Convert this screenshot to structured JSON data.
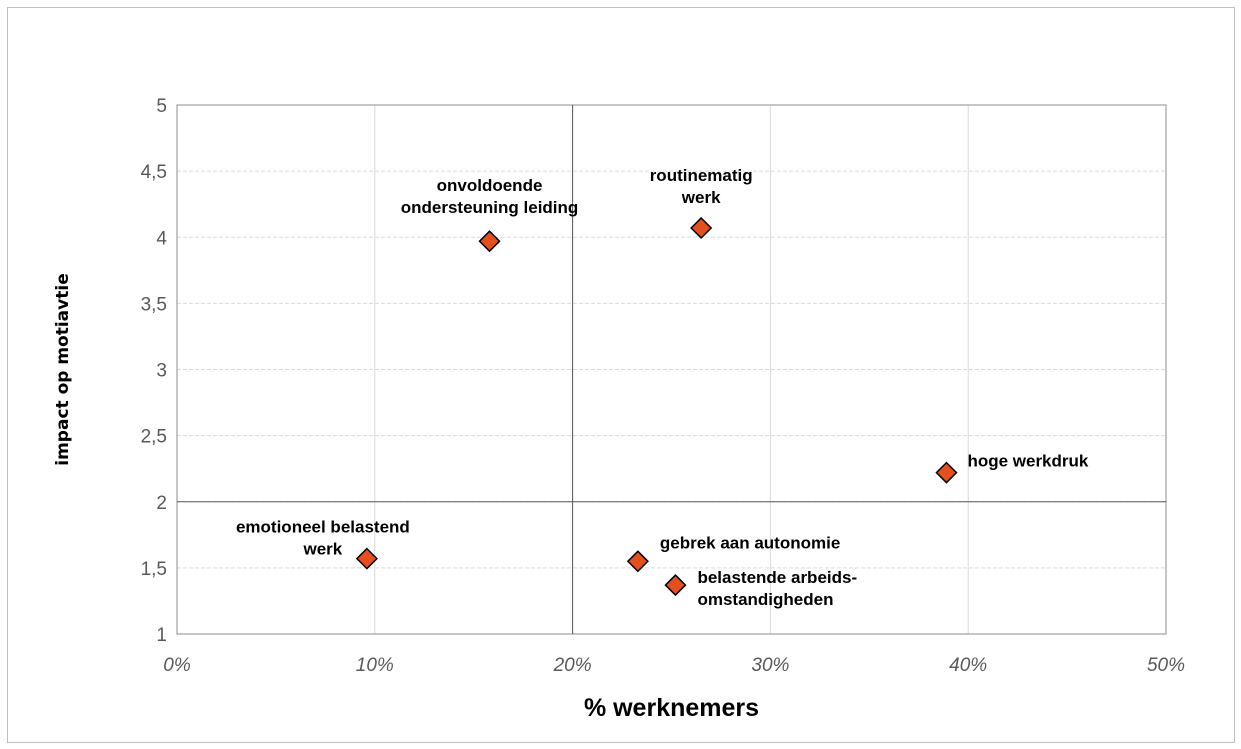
{
  "chart_data": {
    "type": "scatter",
    "xlabel": "% werknemers",
    "ylabel": "impact op motiavtie",
    "xlim": [
      0,
      0.5
    ],
    "ylim": [
      1,
      5
    ],
    "x_ticks": [
      "0%",
      "10%",
      "20%",
      "30%",
      "40%",
      "50%"
    ],
    "y_ticks": [
      "1",
      "1,5",
      "2",
      "2,5",
      "3",
      "3,5",
      "4",
      "4,5",
      "5"
    ],
    "grid": true,
    "reference_lines": {
      "x": 0.2,
      "y": 2
    },
    "marker": {
      "shape": "diamond",
      "color": "#e2501f"
    },
    "points": [
      {
        "label_lines": [
          "onvoldoende",
          "ondersteuning leiding"
        ],
        "x": 0.158,
        "y": 3.97
      },
      {
        "label_lines": [
          "routinematig",
          "werk"
        ],
        "x": 0.265,
        "y": 4.07
      },
      {
        "label_lines": [
          "hoge werkdruk"
        ],
        "x": 0.389,
        "y": 2.22
      },
      {
        "label_lines": [
          "emotioneel belastend",
          "werk"
        ],
        "x": 0.096,
        "y": 1.57
      },
      {
        "label_lines": [
          "gebrek aan autonomie"
        ],
        "x": 0.233,
        "y": 1.55
      },
      {
        "label_lines": [
          "belastende arbeids-",
          "omstandigheden"
        ],
        "x": 0.252,
        "y": 1.37
      }
    ]
  }
}
